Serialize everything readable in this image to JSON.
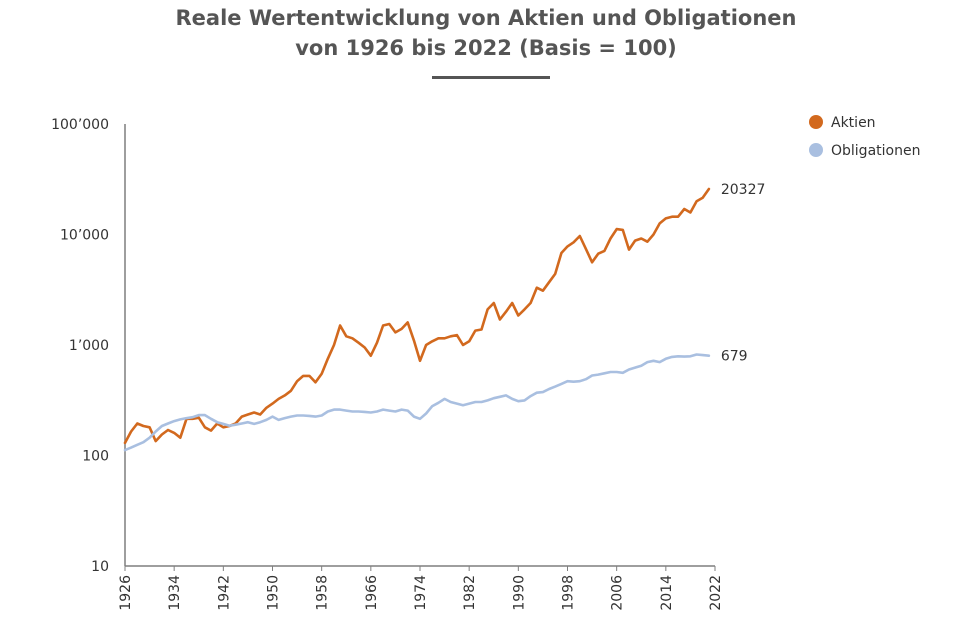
{
  "chart_data": {
    "type": "line",
    "title_line1": "Reale Wertentwicklung von Aktien und Obligationen",
    "title_line2": "von 1926 bis 2022 (Basis = 100)",
    "y_scale": "log",
    "ylim": [
      10,
      100000
    ],
    "xlim": [
      1926,
      2022
    ],
    "y_tick_values": [
      10,
      100,
      1000,
      10000,
      100000
    ],
    "y_tick_labels": [
      "10",
      "100",
      "1’000",
      "10’000",
      "100’000"
    ],
    "x_ticks": [
      "1926",
      "1934",
      "1942",
      "1950",
      "1958",
      "1966",
      "1974",
      "1982",
      "1990",
      "1998",
      "2006",
      "2014",
      "2022"
    ],
    "grid": false,
    "legend_position": "top-right",
    "series": [
      {
        "name": "Aktien",
        "color": "#d2691e",
        "end_label": "20327",
        "x": [
          1926,
          1927,
          1928,
          1929,
          1930,
          1931,
          1932,
          1933,
          1934,
          1935,
          1936,
          1937,
          1938,
          1939,
          1940,
          1941,
          1942,
          1943,
          1944,
          1945,
          1946,
          1947,
          1948,
          1949,
          1950,
          1951,
          1952,
          1953,
          1954,
          1955,
          1956,
          1957,
          1958,
          1959,
          1960,
          1961,
          1962,
          1963,
          1964,
          1965,
          1966,
          1967,
          1968,
          1969,
          1970,
          1971,
          1972,
          1973,
          1974,
          1975,
          1976,
          1977,
          1978,
          1979,
          1980,
          1981,
          1982,
          1983,
          1984,
          1985,
          1986,
          1987,
          1988,
          1989,
          1990,
          1991,
          1992,
          1993,
          1994,
          1995,
          1996,
          1997,
          1998,
          1999,
          2000,
          2001,
          2002,
          2003,
          2004,
          2005,
          2006,
          2007,
          2008,
          2009,
          2010,
          2011,
          2012,
          2013,
          2014,
          2015,
          2016,
          2017,
          2018,
          2019,
          2020,
          2021
        ],
        "y": [
          130,
          165,
          195,
          185,
          180,
          135,
          155,
          170,
          160,
          145,
          215,
          215,
          220,
          180,
          168,
          195,
          180,
          185,
          195,
          225,
          235,
          245,
          235,
          270,
          295,
          325,
          350,
          385,
          470,
          525,
          525,
          460,
          550,
          750,
          1000,
          1500,
          1200,
          1150,
          1050,
          950,
          800,
          1050,
          1500,
          1550,
          1300,
          1400,
          1600,
          1100,
          720,
          1000,
          1080,
          1150,
          1150,
          1200,
          1230,
          1000,
          1080,
          1350,
          1380,
          2100,
          2400,
          1700,
          2000,
          2400,
          1850,
          2100,
          2400,
          3300,
          3100,
          3700,
          4400,
          6800,
          7800,
          8500,
          9700,
          7400,
          5600,
          6700,
          7100,
          9200,
          11200,
          11000,
          7300,
          8800,
          9200,
          8600,
          10000,
          12600,
          14000,
          14500,
          14500,
          17000,
          15800,
          20000,
          21500,
          25800
        ]
      },
      {
        "name": "Obligationen",
        "color": "#a9bfe0",
        "end_label": "679",
        "x": [
          1926,
          1927,
          1928,
          1929,
          1930,
          1931,
          1932,
          1933,
          1934,
          1935,
          1936,
          1937,
          1938,
          1939,
          1940,
          1941,
          1942,
          1943,
          1944,
          1945,
          1946,
          1947,
          1948,
          1949,
          1950,
          1951,
          1952,
          1953,
          1954,
          1955,
          1956,
          1957,
          1958,
          1959,
          1960,
          1961,
          1962,
          1963,
          1964,
          1965,
          1966,
          1967,
          1968,
          1969,
          1970,
          1971,
          1972,
          1973,
          1974,
          1975,
          1976,
          1977,
          1978,
          1979,
          1980,
          1981,
          1982,
          1983,
          1984,
          1985,
          1986,
          1987,
          1988,
          1989,
          1990,
          1991,
          1992,
          1993,
          1994,
          1995,
          1996,
          1997,
          1998,
          1999,
          2000,
          2001,
          2002,
          2003,
          2004,
          2005,
          2006,
          2007,
          2008,
          2009,
          2010,
          2011,
          2012,
          2013,
          2014,
          2015,
          2016,
          2017,
          2018,
          2019,
          2020,
          2021
        ],
        "y": [
          112,
          118,
          125,
          132,
          145,
          165,
          185,
          195,
          205,
          212,
          218,
          222,
          232,
          232,
          215,
          200,
          193,
          186,
          190,
          195,
          200,
          193,
          200,
          210,
          225,
          210,
          218,
          225,
          230,
          230,
          228,
          225,
          230,
          250,
          260,
          260,
          255,
          250,
          250,
          248,
          245,
          250,
          260,
          255,
          250,
          260,
          255,
          225,
          215,
          240,
          280,
          300,
          325,
          305,
          295,
          285,
          295,
          305,
          305,
          315,
          330,
          340,
          350,
          325,
          310,
          315,
          345,
          370,
          375,
          400,
          420,
          445,
          470,
          465,
          470,
          490,
          530,
          540,
          555,
          570,
          570,
          560,
          600,
          625,
          650,
          700,
          720,
          700,
          750,
          780,
          790,
          785,
          790,
          820,
          810,
          800
        ]
      }
    ]
  }
}
